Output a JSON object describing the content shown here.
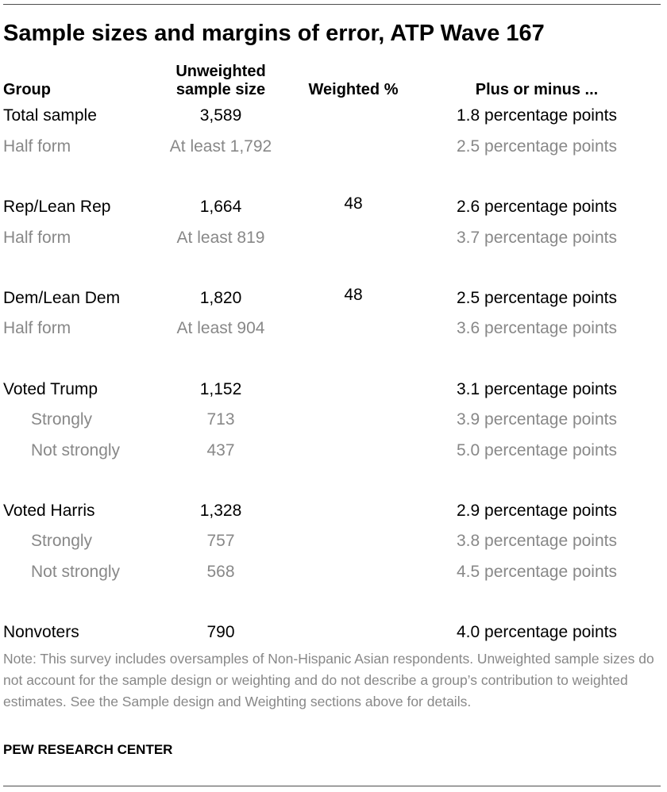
{
  "title": "Sample sizes and margins of error, ATP Wave 167",
  "columns": {
    "group": "Group",
    "unweighted_line1": "Unweighted",
    "unweighted_line2": "sample size",
    "weighted": "Weighted %",
    "moe": "Plus or minus ..."
  },
  "rows": [
    {
      "group": "Total sample",
      "unweighted": "3,589",
      "weighted": "",
      "moe": "1.8 percentage points",
      "style": "main"
    },
    {
      "group": "Half form",
      "unweighted": "At least 1,792",
      "weighted": "",
      "moe": "2.5 percentage points",
      "style": "sub"
    },
    {
      "group": "Rep/Lean Rep",
      "unweighted": "1,664",
      "weighted": "48",
      "moe": "2.6 percentage points",
      "style": "main"
    },
    {
      "group": "Half form",
      "unweighted": "At least 819",
      "weighted": "",
      "moe": "3.7 percentage points",
      "style": "sub"
    },
    {
      "group": "Dem/Lean Dem",
      "unweighted": "1,820",
      "weighted": "48",
      "moe": "2.5 percentage points",
      "style": "main"
    },
    {
      "group": "Half form",
      "unweighted": "At least 904",
      "weighted": "",
      "moe": "3.6 percentage points",
      "style": "sub"
    },
    {
      "group": "Voted Trump",
      "unweighted": "1,152",
      "weighted": "",
      "moe": "3.1 percentage points",
      "style": "main"
    },
    {
      "group": "Strongly",
      "unweighted": "713",
      "weighted": "",
      "moe": "3.9 percentage points",
      "style": "sub-indent"
    },
    {
      "group": "Not strongly",
      "unweighted": "437",
      "weighted": "",
      "moe": "5.0 percentage points",
      "style": "sub-indent"
    },
    {
      "group": "Voted Harris",
      "unweighted": "1,328",
      "weighted": "",
      "moe": "2.9 percentage points",
      "style": "main"
    },
    {
      "group": "Strongly",
      "unweighted": "757",
      "weighted": "",
      "moe": "3.8 percentage points",
      "style": "sub-indent"
    },
    {
      "group": "Not strongly",
      "unweighted": "568",
      "weighted": "",
      "moe": "4.5 percentage points",
      "style": "sub-indent"
    },
    {
      "group": "Nonvoters",
      "unweighted": "790",
      "weighted": "",
      "moe": "4.0 percentage points",
      "style": "main"
    }
  ],
  "note": "Note: This survey includes oversamples of Non-Hispanic Asian respondents. Unweighted sample sizes do not account for the sample design or weighting and do not describe a group’s contribution to weighted estimates. See the Sample design and Weighting sections above for details.",
  "source": "PEW RESEARCH CENTER",
  "colors": {
    "main_text": "#000000",
    "sub_text": "#888888",
    "rule": "#4d4d4d"
  }
}
